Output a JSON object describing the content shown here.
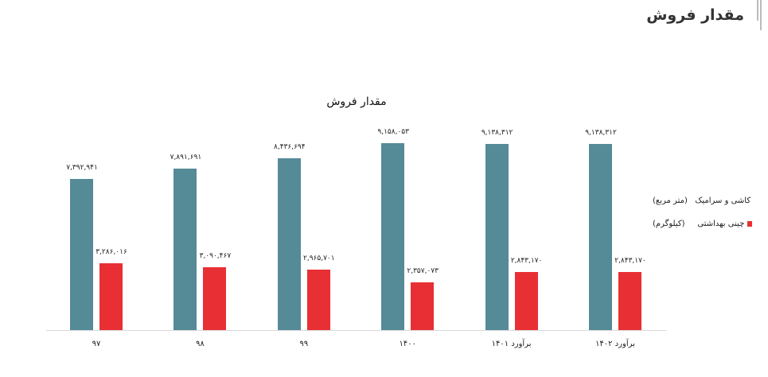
{
  "header": {
    "title": "مقدار فروش"
  },
  "chart_data": {
    "type": "bar",
    "title": "مقدار فروش",
    "xlabel": "",
    "ylabel": "",
    "grid": false,
    "legend_position": "right",
    "categories": [
      "97",
      "98",
      "99",
      "1400",
      "برآورد 1401",
      "برآورد 1402"
    ],
    "category_labels": [
      "۹۷",
      "۹۸",
      "۹۹",
      "۱۴۰۰",
      "برآورد ۱۴۰۱",
      "برآورد ۱۴۰۲"
    ],
    "series": [
      {
        "name": "کاشی و سرامیک    (متر مربع)",
        "color": "#558a97",
        "values": [
          7392941,
          7891691,
          8436694,
          9158053,
          9138312,
          9138312
        ],
        "labels": [
          "۷,۳۹۲,۹۴۱",
          "۷,۸۹۱,۶۹۱",
          "۸,۴۳۶,۶۹۴",
          "۹,۱۵۸,۰۵۳",
          "۹,۱۳۸,۳۱۲",
          "۹,۱۳۸,۳۱۲"
        ]
      },
      {
        "name": "چینی بهداشتی    (کیلوگرم)",
        "color": "#e83034",
        "values": [
          3286016,
          3090467,
          2965701,
          2357073,
          2843170,
          2843170
        ],
        "labels": [
          "۳,۲۸۶,۰۱۶",
          "۳,۰۹۰,۴۶۷",
          "۲,۹۶۵,۷۰۱",
          "۲,۳۵۷,۰۷۳",
          "۲,۸۴۳,۱۷۰",
          "۲,۸۴۳,۱۷۰"
        ]
      }
    ],
    "ylim": [
      0,
      10000000
    ]
  },
  "legend": [
    {
      "label": "کاشی و سرامیک   (متر مربع)",
      "color": "#558a97"
    },
    {
      "label": "چینی بهداشتی     (کیلوگرم)",
      "color": "#e83034"
    }
  ]
}
